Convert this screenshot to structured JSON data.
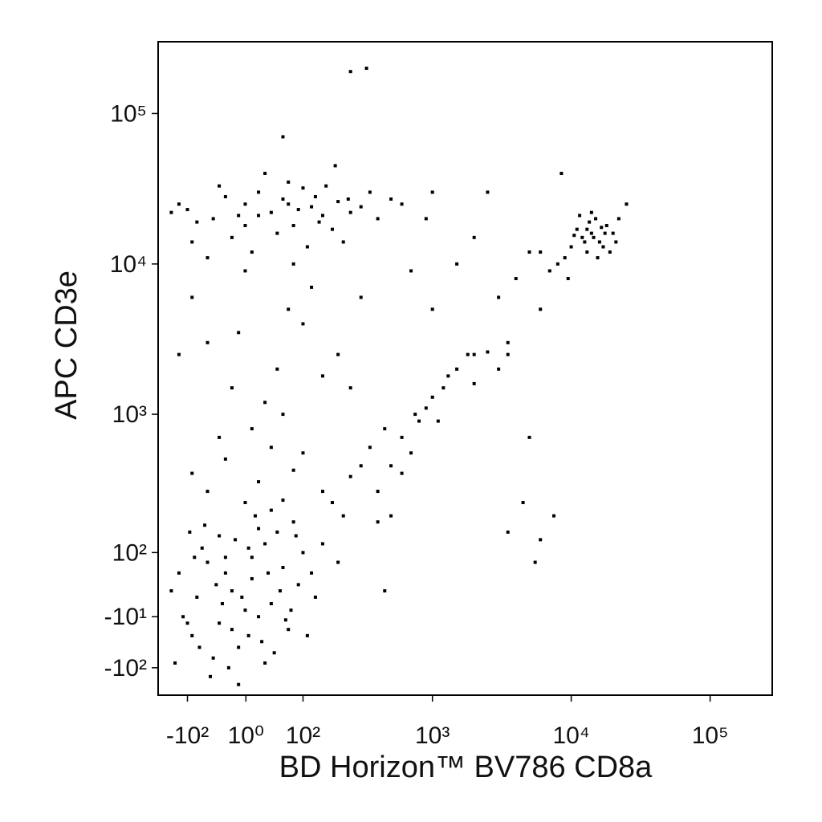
{
  "chart_data": {
    "type": "scatter",
    "xlabel": "BD Horizon™ BV786  CD8a",
    "ylabel": "APC  CD3e",
    "color": "#000000",
    "xscale": "biexponential",
    "yscale": "biexponential",
    "xlim": [
      -180,
      280000
    ],
    "ylim": [
      -170,
      300000
    ],
    "xticks": [
      {
        "value": -100,
        "label": "-10²"
      },
      {
        "value": 1,
        "label": "10⁰"
      },
      {
        "value": 100,
        "label": "10²"
      },
      {
        "value": 1000,
        "label": "10³"
      },
      {
        "value": 10000,
        "label": "10⁴"
      },
      {
        "value": 100000,
        "label": "10⁵"
      }
    ],
    "yticks": [
      {
        "value": 100000,
        "label": "10⁵"
      },
      {
        "value": 10000,
        "label": "10⁴"
      },
      {
        "value": 1000,
        "label": "10³"
      },
      {
        "value": 100,
        "label": "10²"
      },
      {
        "value": -10,
        "label": "-10¹"
      },
      {
        "value": -100,
        "label": "-10²"
      }
    ],
    "x": [
      -20,
      10,
      -60,
      40,
      -100,
      5,
      30,
      -40,
      60,
      -10,
      90,
      -80,
      20,
      -30,
      50,
      0,
      -120,
      70,
      15,
      -50,
      100,
      -5,
      35,
      -70,
      25,
      -90,
      80,
      -15,
      45,
      -35,
      120,
      -25,
      55,
      -65,
      10,
      -110,
      150,
      -45,
      65,
      0,
      -85,
      30,
      -140,
      110,
      -20,
      40,
      -55,
      85,
      -30,
      5,
      -95,
      130,
      -10,
      60,
      200,
      -75,
      20,
      -130,
      75,
      -40,
      -60,
      20,
      80,
      150,
      250,
      -30,
      40,
      180,
      300,
      -90,
      100,
      220,
      400,
      500,
      600,
      700,
      350,
      800,
      900,
      1000,
      1200,
      1100,
      1500,
      1800,
      2500,
      3500,
      600,
      450,
      750,
      400,
      500,
      1300,
      2000,
      3000,
      -20,
      50,
      10,
      -60,
      100,
      30,
      -90,
      150,
      -40,
      70,
      200,
      0,
      -120,
      120,
      60,
      -10,
      250,
      300,
      -50,
      0,
      40,
      80,
      120,
      -100,
      20,
      60,
      150,
      200,
      -20,
      100,
      -80,
      10,
      70,
      180,
      250,
      -30,
      50,
      130,
      300,
      -120,
      90,
      -10,
      30,
      160,
      220,
      400,
      -60,
      110,
      -140,
      500,
      0,
      70,
      140,
      350,
      -40,
      240,
      80,
      20,
      190,
      -90,
      600,
      1000,
      60,
      12000,
      14000,
      16000,
      10000,
      18000,
      13000,
      15000,
      11000,
      20000,
      9000,
      17000,
      14000,
      8000,
      22000,
      12500,
      16500,
      19000,
      10500,
      13500,
      25000,
      7000,
      15500,
      11500,
      6000,
      9500,
      21000,
      8500,
      14500,
      13000,
      17500,
      4000,
      2000,
      1500,
      3000,
      6000,
      2500,
      900,
      700,
      5000,
      1000,
      3500,
      2000,
      250,
      330,
      5000,
      4500,
      6000,
      5500,
      7500,
      3500,
      450
    ],
    "values": [
      30,
      50,
      80,
      10,
      -20,
      -40,
      120,
      140,
      70,
      -60,
      40,
      20,
      -10,
      90,
      150,
      0,
      60,
      -30,
      200,
      -80,
      100,
      20,
      60,
      110,
      -50,
      -40,
      180,
      130,
      -70,
      10,
      60,
      -100,
      30,
      170,
      90,
      -10,
      120,
      40,
      -15,
      250,
      90,
      -90,
      30,
      -40,
      -30,
      220,
      -120,
      140,
      60,
      110,
      150,
      20,
      -140,
      260,
      80,
      -60,
      160,
      -90,
      0,
      -20,
      300,
      350,
      420,
      300,
      380,
      500,
      600,
      250,
      450,
      400,
      550,
      200,
      300,
      450,
      700,
      550,
      600,
      900,
      1100,
      1300,
      1500,
      900,
      2000,
      2500,
      2600,
      3000,
      400,
      800,
      1000,
      180,
      200,
      1800,
      1600,
      2000,
      1500,
      2000,
      800,
      3000,
      4000,
      1200,
      6000,
      1800,
      700,
      5000,
      2500,
      9000,
      2500,
      7000,
      1000,
      3500,
      1500,
      6000,
      20000,
      25000,
      22000,
      18000,
      24000,
      23000,
      30000,
      27000,
      21000,
      26000,
      15000,
      32000,
      19000,
      12000,
      35000,
      17000,
      22000,
      28000,
      16000,
      28000,
      24000,
      25000,
      23000,
      21000,
      40000,
      33000,
      14000,
      20000,
      11000,
      13000,
      22000,
      27000,
      18000,
      25000,
      19000,
      30000,
      33000,
      27000,
      10000,
      21000,
      45000,
      14000,
      25000,
      30000,
      70000,
      15000,
      16000,
      14000,
      13000,
      18000,
      12000,
      20000,
      17000,
      16000,
      11000,
      13000,
      22000,
      10000,
      20000,
      14000,
      17500,
      12000,
      15500,
      19000,
      25000,
      9000,
      11000,
      21000,
      12000,
      8000,
      14000,
      40000,
      15000,
      17000,
      16000,
      8000,
      15000,
      10000,
      6000,
      5000,
      30000,
      20000,
      9000,
      12000,
      5000,
      2500,
      2500,
      190000,
      200000,
      700,
      250,
      130,
      80,
      200,
      150,
      30
    ]
  }
}
